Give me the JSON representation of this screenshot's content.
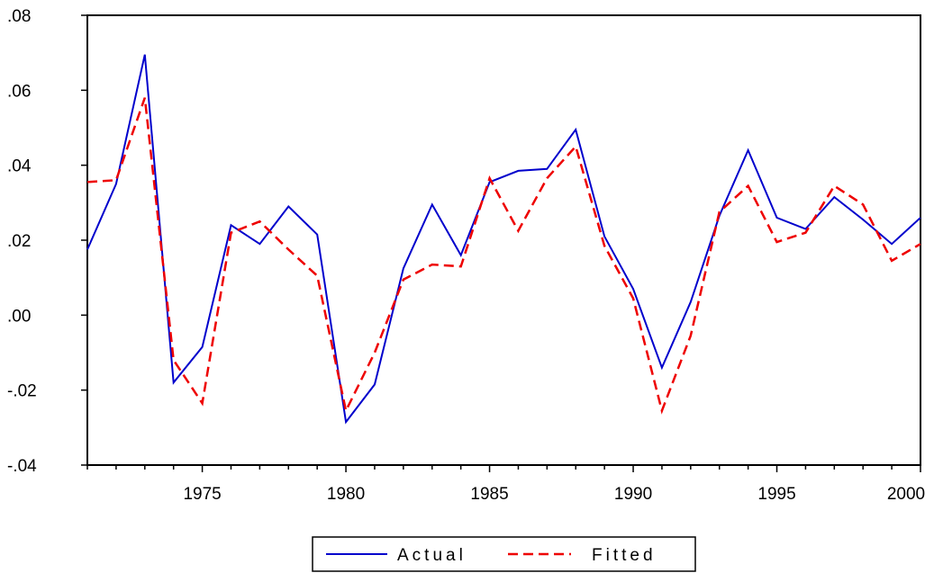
{
  "chart_data": {
    "type": "line",
    "title": "",
    "xlabel": "",
    "ylabel": "",
    "x": [
      1971,
      1972,
      1973,
      1974,
      1975,
      1976,
      1977,
      1978,
      1979,
      1980,
      1981,
      1982,
      1983,
      1984,
      1985,
      1986,
      1987,
      1988,
      1989,
      1990,
      1991,
      1992,
      1993,
      1994,
      1995,
      1996,
      1997,
      1998,
      1999,
      2000
    ],
    "xlim": [
      1971,
      2000
    ],
    "ylim": [
      -0.04,
      0.08
    ],
    "x_ticks": [
      1975,
      1980,
      1985,
      1990,
      1995,
      2000
    ],
    "x_tick_labels": [
      "1975",
      "1980",
      "1985",
      "1990",
      "1995",
      "2000"
    ],
    "y_ticks": [
      -0.04,
      -0.02,
      0.0,
      0.02,
      0.04,
      0.06,
      0.08
    ],
    "y_tick_labels": [
      "-.04",
      "-.02",
      ".00",
      ".02",
      ".04",
      ".06",
      ".08"
    ],
    "grid": false,
    "legend_position": "bottom-center",
    "series": [
      {
        "name": "Actual",
        "color": "#0000cc",
        "dash": "solid",
        "values": [
          0.0175,
          0.035,
          0.0695,
          -0.018,
          -0.0085,
          0.024,
          0.019,
          0.029,
          0.0215,
          -0.0285,
          -0.0185,
          0.0125,
          0.0295,
          0.016,
          0.0355,
          0.0385,
          0.039,
          0.0495,
          0.021,
          0.007,
          -0.014,
          0.0035,
          0.0265,
          0.044,
          0.026,
          0.023,
          0.0315,
          0.0255,
          0.019,
          0.026
        ]
      },
      {
        "name": "Fitted",
        "color": "#ee0000",
        "dash": "dashed",
        "values": [
          0.0355,
          0.036,
          0.058,
          -0.012,
          -0.0235,
          0.022,
          0.025,
          0.0175,
          0.0105,
          -0.0255,
          -0.01,
          0.0095,
          0.0135,
          0.013,
          0.0365,
          0.0225,
          0.0365,
          0.045,
          0.0185,
          0.0045,
          -0.0255,
          -0.0055,
          0.0275,
          0.0345,
          0.0195,
          0.022,
          0.0345,
          0.0295,
          0.0145,
          0.019
        ]
      }
    ]
  }
}
